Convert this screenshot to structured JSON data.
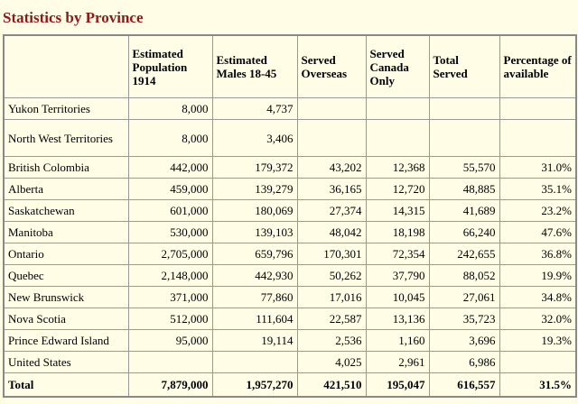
{
  "header": {
    "title": "Statistics by Province"
  },
  "table": {
    "columns": [
      "Estimated Population 1914",
      "Estimated Males 18-45",
      "Served Overseas",
      "Served Canada Only",
      "Total Served",
      "Percentage of available"
    ],
    "rows": [
      [
        "Yukon Territories",
        "8,000",
        "4,737",
        null,
        null,
        null,
        null
      ],
      [
        "North West Territories",
        "8,000",
        "3,406",
        null,
        null,
        null,
        null
      ],
      [
        "British Colombia",
        "442,000",
        "179,372",
        "43,202",
        "12,368",
        "55,570",
        "31.0%"
      ],
      [
        "Alberta",
        "459,000",
        "139,279",
        "36,165",
        "12,720",
        "48,885",
        "35.1%"
      ],
      [
        "Saskatchewan",
        "601,000",
        "180,069",
        "27,374",
        "14,315",
        "41,689",
        "23.2%"
      ],
      [
        "Manitoba",
        "530,000",
        "139,103",
        "48,042",
        "18,198",
        "66,240",
        "47.6%"
      ],
      [
        "Ontario",
        "2,705,000",
        "659,796",
        "170,301",
        "72,354",
        "242,655",
        "36.8%"
      ],
      [
        "Quebec",
        "2,148,000",
        "442,930",
        "50,262",
        "37,790",
        "88,052",
        "19.9%"
      ],
      [
        "New Brunswick",
        "371,000",
        "77,860",
        "17,016",
        "10,045",
        "27,061",
        "34.8%"
      ],
      [
        "Nova Scotia",
        "512,000",
        "111,604",
        "22,587",
        "13,136",
        "35,723",
        "32.0%"
      ],
      [
        "Prince Edward Island",
        "95,000",
        "19,114",
        "2,536",
        "1,160",
        "3,696",
        "19.3%"
      ],
      [
        "United States",
        null,
        null,
        "4,025",
        "2,961",
        "6,986",
        null
      ]
    ],
    "total": [
      "Total",
      "7,879,000",
      "1,957,270",
      "421,510",
      "195,047",
      "616,557",
      "31.5%"
    ]
  }
}
